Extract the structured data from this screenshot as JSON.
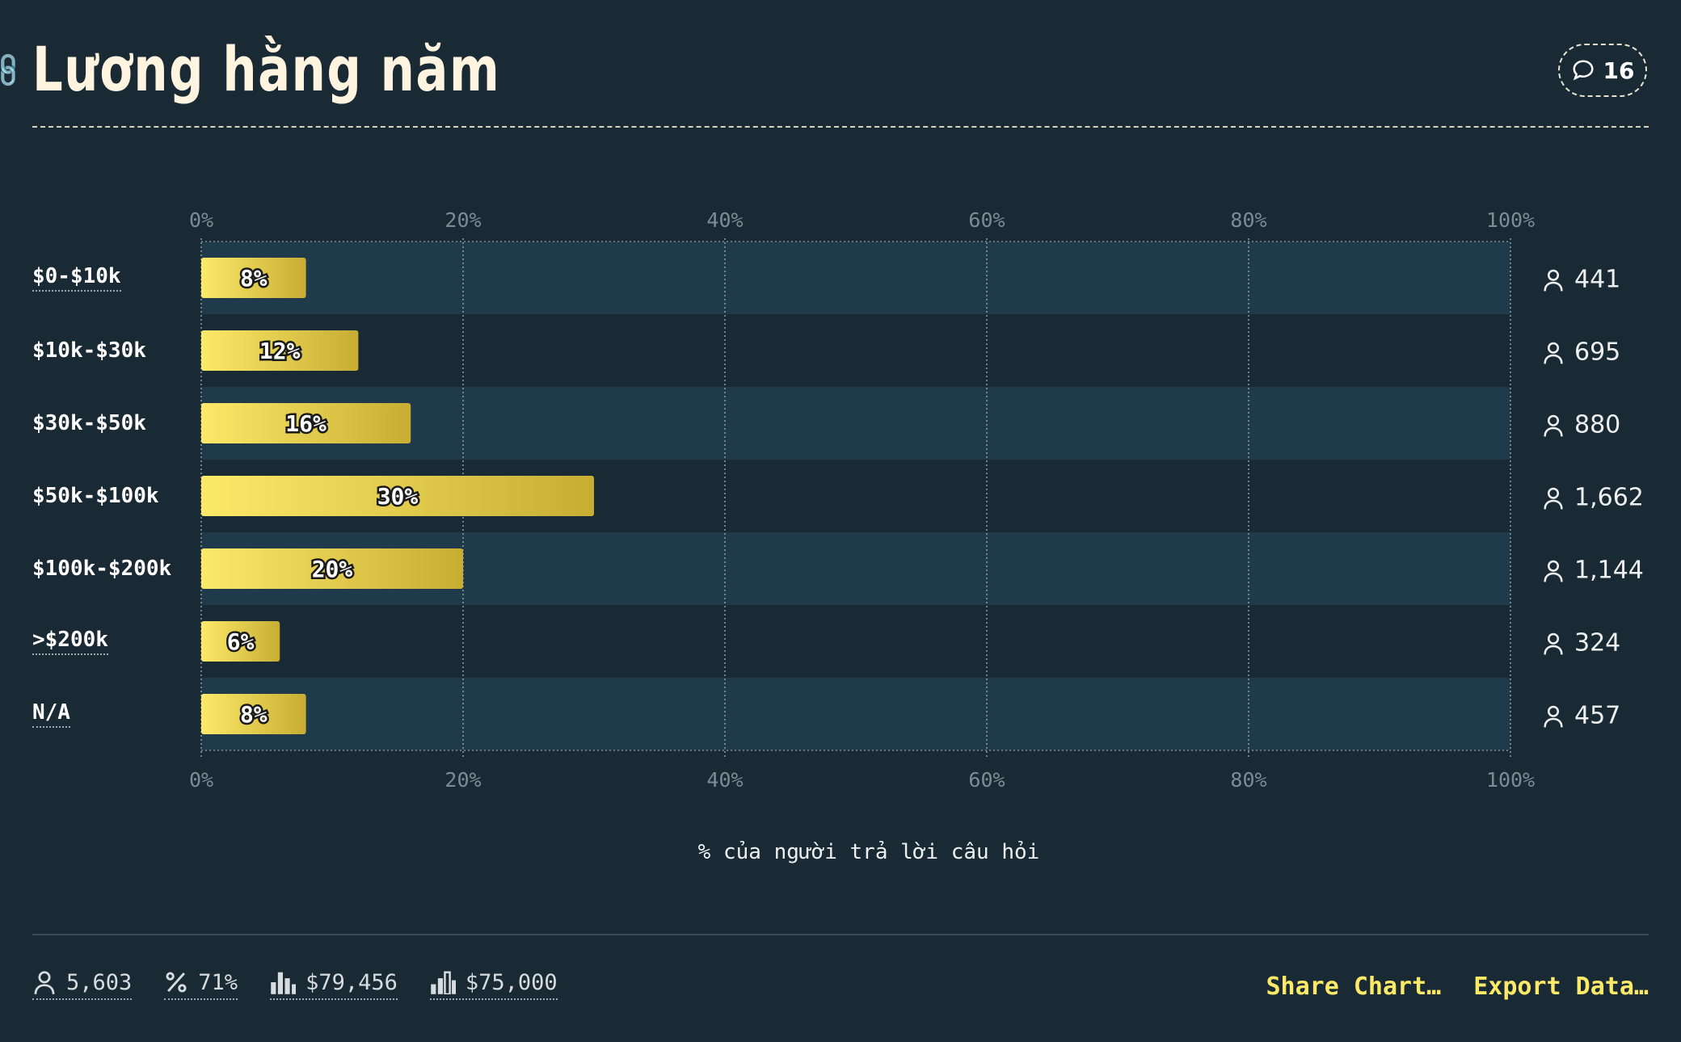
{
  "header": {
    "title": "Lương hằng năm",
    "comment_count": "16"
  },
  "chart_data": {
    "type": "bar",
    "orientation": "horizontal",
    "categories": [
      "$0-$10k",
      "$10k-$30k",
      "$30k-$50k",
      "$50k-$100k",
      "$100k-$200k",
      ">$200k",
      "N/A"
    ],
    "values": [
      8,
      12,
      16,
      30,
      20,
      6,
      8
    ],
    "value_labels": [
      "8%",
      "12%",
      "16%",
      "30%",
      "20%",
      "6%",
      "8%"
    ],
    "counts": [
      "441",
      "695",
      "880",
      "1,662",
      "1,144",
      "324",
      "457"
    ],
    "xlim": [
      0,
      100
    ],
    "xticks": [
      "0%",
      "20%",
      "40%",
      "60%",
      "80%",
      "100%"
    ],
    "xlabel": "% của người trả lời câu hỏi",
    "ylabel": "",
    "grid": true,
    "colors": {
      "bar_start": "#fde968",
      "bar_end": "#c7ae33",
      "band": "#1f3a4a",
      "background": "#192a35"
    }
  },
  "footer": {
    "respondents": "5,603",
    "percent": "71%",
    "average": "$79,456",
    "median": "$75,000",
    "share_label": "Share Chart…",
    "export_label": "Export Data…"
  }
}
